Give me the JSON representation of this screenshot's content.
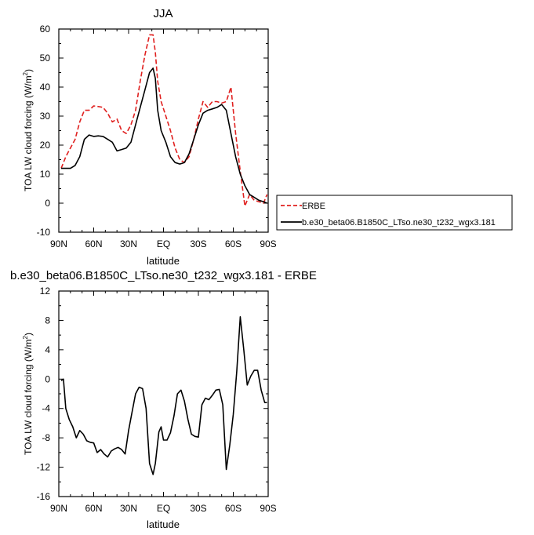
{
  "chart_data": [
    {
      "type": "line",
      "title": "JJA",
      "xlabel": "latitude",
      "ylabel": "TOA LW cloud forcing (W/m",
      "ylabel_sup": "2",
      "ylabel_close": ")",
      "xlim": [
        90,
        -90
      ],
      "ylim": [
        -10,
        60
      ],
      "x_ticks": [
        90,
        60,
        30,
        0,
        -30,
        -60,
        -90
      ],
      "x_tick_labels": [
        "90N",
        "60N",
        "30N",
        "EQ",
        "30S",
        "60S",
        "90S"
      ],
      "y_ticks": [
        -10,
        0,
        10,
        20,
        30,
        40,
        50,
        60
      ],
      "y_tick_labels": [
        "-10",
        "0",
        "10",
        "20",
        "30",
        "40",
        "50",
        "60"
      ],
      "legend": "outside-right",
      "series": [
        {
          "name": "ERBE",
          "color": "#e0201f",
          "dash": true,
          "x": [
            88,
            84,
            80,
            76,
            72,
            68,
            64,
            60,
            56,
            52,
            48,
            44,
            40,
            36,
            32,
            28,
            24,
            20,
            16,
            12,
            9,
            7,
            5,
            2,
            -2,
            -6,
            -10,
            -14,
            -18,
            -22,
            -26,
            -30,
            -34,
            -38,
            -42,
            -46,
            -50,
            -54,
            -58,
            -62,
            -66,
            -70,
            -74,
            -78,
            -82,
            -86,
            -89
          ],
          "y": [
            12,
            16,
            19,
            22,
            28,
            32,
            32,
            33.5,
            33.3,
            33,
            31,
            28,
            29,
            25,
            24,
            27,
            32,
            42,
            51,
            58,
            58,
            52,
            42,
            35,
            30,
            25,
            19,
            15,
            14,
            16,
            22,
            29,
            35,
            33,
            35,
            35,
            34.5,
            35,
            40,
            24,
            11,
            -1,
            3,
            1,
            0.5,
            0,
            3
          ]
        },
        {
          "name": "b.e30_beta06.B1850C_LTso.ne30_t232_wgx3.181",
          "color": "#000000",
          "dash": false,
          "x": [
            88,
            84,
            80,
            76,
            72,
            68,
            64,
            60,
            56,
            52,
            48,
            44,
            40,
            36,
            32,
            28,
            24,
            20,
            16,
            12,
            9,
            7,
            5,
            2,
            -2,
            -6,
            -10,
            -14,
            -18,
            -22,
            -26,
            -30,
            -34,
            -38,
            -42,
            -46,
            -50,
            -54,
            -58,
            -62,
            -66,
            -70,
            -74,
            -78,
            -82,
            -86,
            -89
          ],
          "y": [
            12,
            12,
            12,
            13,
            16,
            22,
            23.5,
            23,
            23.2,
            23,
            22,
            21,
            18,
            18.5,
            19,
            21,
            27,
            33,
            39,
            45,
            46.5,
            43,
            32,
            25,
            21,
            16,
            14,
            13.5,
            14,
            17,
            22,
            27,
            31,
            32,
            32.5,
            33,
            34,
            32,
            24,
            16,
            10,
            6,
            3,
            2,
            1,
            0.5,
            0
          ]
        }
      ]
    },
    {
      "type": "line",
      "title": "b.e30_beta06.B1850C_LTso.ne30_t232_wgx3.181 - ERBE",
      "xlabel": "latitude",
      "ylabel": "TOA LW cloud forcing (W/m",
      "ylabel_sup": "2",
      "ylabel_close": ")",
      "xlim": [
        90,
        -90
      ],
      "ylim": [
        -16,
        12
      ],
      "x_ticks": [
        90,
        60,
        30,
        0,
        -30,
        -60,
        -90
      ],
      "x_tick_labels": [
        "90N",
        "60N",
        "30N",
        "EQ",
        "30S",
        "60S",
        "90S"
      ],
      "y_ticks": [
        -16,
        -12,
        -8,
        -4,
        0,
        4,
        8,
        12
      ],
      "y_tick_labels": [
        "-16",
        "-12",
        "-8",
        "-4",
        "0",
        "4",
        "8",
        "12"
      ],
      "series": [
        {
          "color": "#000000",
          "x": [
            88,
            86,
            84,
            81,
            78,
            75,
            72,
            69,
            66,
            63,
            60,
            57,
            54,
            51,
            48,
            45,
            42,
            39,
            36,
            33,
            30,
            27,
            24,
            21,
            18,
            15,
            12,
            9,
            7,
            4,
            2,
            0,
            -3,
            -6,
            -9,
            -12,
            -15,
            -18,
            -21,
            -24,
            -27,
            -30,
            -33,
            -36,
            -39,
            -42,
            -45,
            -48,
            -51,
            -54,
            -57,
            -60,
            -63,
            -66,
            -69,
            -72,
            -75,
            -78,
            -81,
            -84,
            -87,
            -89
          ],
          "y": [
            -0.2,
            0,
            -4,
            -5.5,
            -6.5,
            -8,
            -7,
            -7.5,
            -8.4,
            -8.6,
            -8.7,
            -10,
            -9.6,
            -10.2,
            -10.6,
            -9.8,
            -9.5,
            -9.3,
            -9.6,
            -10.2,
            -7,
            -4.5,
            -2,
            -1.1,
            -1.3,
            -4,
            -11.5,
            -13,
            -11.5,
            -7.2,
            -6.5,
            -8.3,
            -8.3,
            -7.3,
            -5,
            -2,
            -1.5,
            -3,
            -5.5,
            -7.5,
            -7.8,
            -7.9,
            -3.5,
            -2.6,
            -2.8,
            -2.2,
            -1.5,
            -1.4,
            -3.5,
            -12.3,
            -9,
            -4.8,
            1,
            8.5,
            4,
            -0.8,
            0.4,
            1.2,
            1.2,
            -1.5,
            -3.2,
            -3.2
          ]
        }
      ]
    }
  ]
}
